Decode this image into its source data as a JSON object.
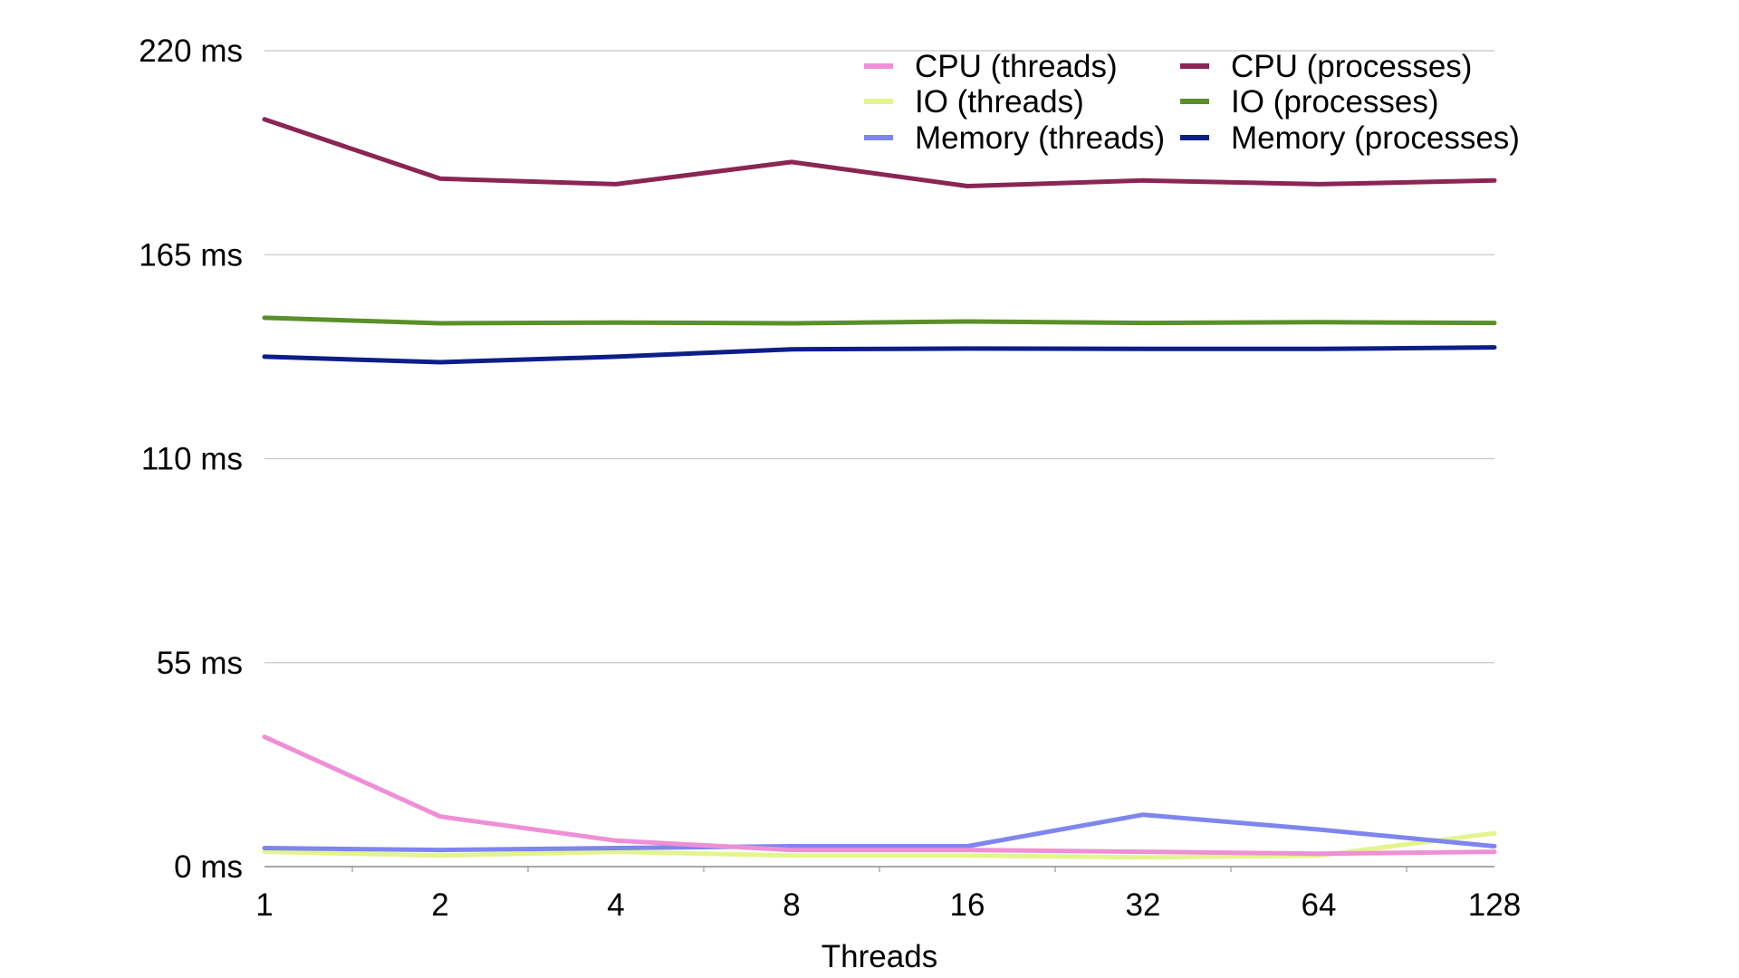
{
  "chart_data": {
    "type": "line",
    "title": "",
    "xlabel": "Threads",
    "ylabel": "",
    "categories": [
      "1",
      "2",
      "4",
      "8",
      "16",
      "32",
      "64",
      "128"
    ],
    "ylim": [
      0,
      220
    ],
    "yticks": [
      {
        "value": 0,
        "label": "0 ms"
      },
      {
        "value": 55,
        "label": "55 ms"
      },
      {
        "value": 110,
        "label": "110 ms"
      },
      {
        "value": 165,
        "label": "165 ms"
      },
      {
        "value": 220,
        "label": "220 ms"
      }
    ],
    "grid": true,
    "legend_position": "top-right",
    "series": [
      {
        "name": "CPU (threads)",
        "color": "#ef8fd6",
        "values": [
          35,
          13.5,
          7,
          4.5,
          4.5,
          4,
          3.5,
          4
        ]
      },
      {
        "name": "CPU (processes)",
        "color": "#8b2553",
        "values": [
          201.5,
          185.5,
          184,
          190,
          183.5,
          185,
          184,
          185
        ]
      },
      {
        "name": "IO (threads)",
        "color": "#e2f68c",
        "values": [
          4,
          3,
          4,
          3,
          3,
          2.5,
          3,
          9
        ]
      },
      {
        "name": "IO (processes)",
        "color": "#5a8f29",
        "values": [
          148,
          146.5,
          146.7,
          146.5,
          147,
          146.6,
          146.8,
          146.6
        ]
      },
      {
        "name": "Memory (threads)",
        "color": "#7e86ee",
        "values": [
          5,
          4.5,
          5,
          5.5,
          5.5,
          14,
          10,
          5.5
        ]
      },
      {
        "name": "Memory (processes)",
        "color": "#0d1f86",
        "values": [
          137.5,
          136,
          137.5,
          139.5,
          139.7,
          139.6,
          139.6,
          140
        ]
      }
    ]
  }
}
